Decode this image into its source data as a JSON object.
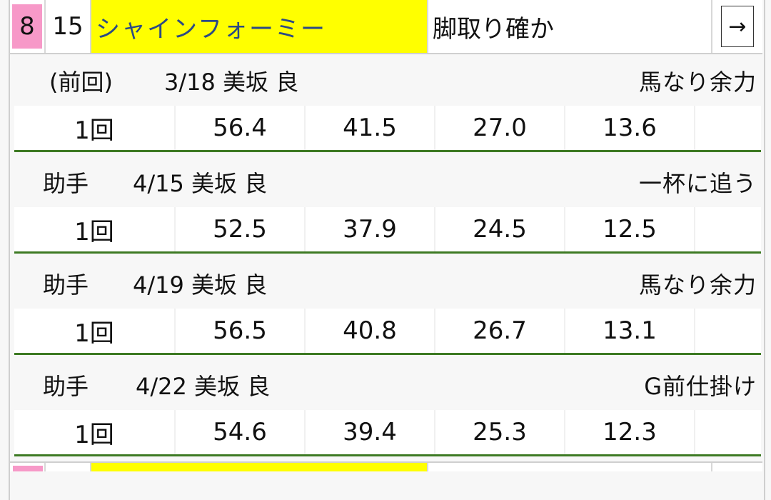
{
  "header": {
    "waku": "8",
    "umaban": "15",
    "horse_name": "シャインフォーミー",
    "comment": "脚取り確か",
    "arrow": "→",
    "colors": {
      "waku_bg": "#f799c8",
      "name_bg": "#ffff00",
      "name_text": "#2b4a85",
      "divider": "#3d7a23"
    }
  },
  "workouts": [
    {
      "rider": "(前回)",
      "date_course": "3/18 美坂 良",
      "note": "馬なり余力",
      "times": [
        "1回",
        "56.4",
        "41.5",
        "27.0",
        "13.6",
        ""
      ]
    },
    {
      "rider": "助手",
      "date_course": "4/15 美坂 良",
      "note": "一杯に追う",
      "times": [
        "1回",
        "52.5",
        "37.9",
        "24.5",
        "12.5",
        ""
      ]
    },
    {
      "rider": "助手",
      "date_course": "4/19 美坂 良",
      "note": "馬なり余力",
      "times": [
        "1回",
        "56.5",
        "40.8",
        "26.7",
        "13.1",
        ""
      ]
    },
    {
      "rider": "助手",
      "date_course": "4/22 美坂 良",
      "note": "G前仕掛け",
      "times": [
        "1回",
        "54.6",
        "39.4",
        "25.3",
        "12.3",
        ""
      ]
    }
  ]
}
